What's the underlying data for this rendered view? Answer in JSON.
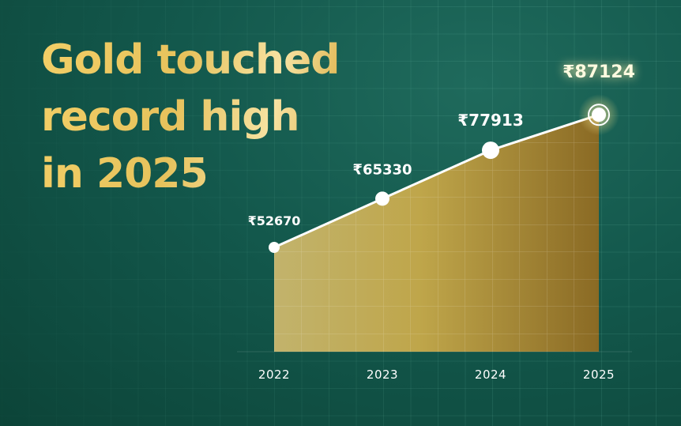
{
  "headline": {
    "line1": "Gold touched",
    "line2": "record high",
    "line3": "in 2025"
  },
  "colors": {
    "background": "#13584c",
    "gold": "#e6c25c",
    "line": "#ffffff"
  },
  "chart_data": {
    "type": "area",
    "title": "Gold touched record high in 2025",
    "categories": [
      "2022",
      "2023",
      "2024",
      "2025"
    ],
    "values": [
      52670,
      65330,
      77913,
      87124
    ],
    "data_labels": [
      "₹52670",
      "₹65330",
      "₹77913",
      "₹87124"
    ],
    "xlabel": "",
    "ylabel": "",
    "ylim": [
      0,
      90000
    ],
    "grid": true,
    "legend": "none",
    "highlight": "2025"
  }
}
